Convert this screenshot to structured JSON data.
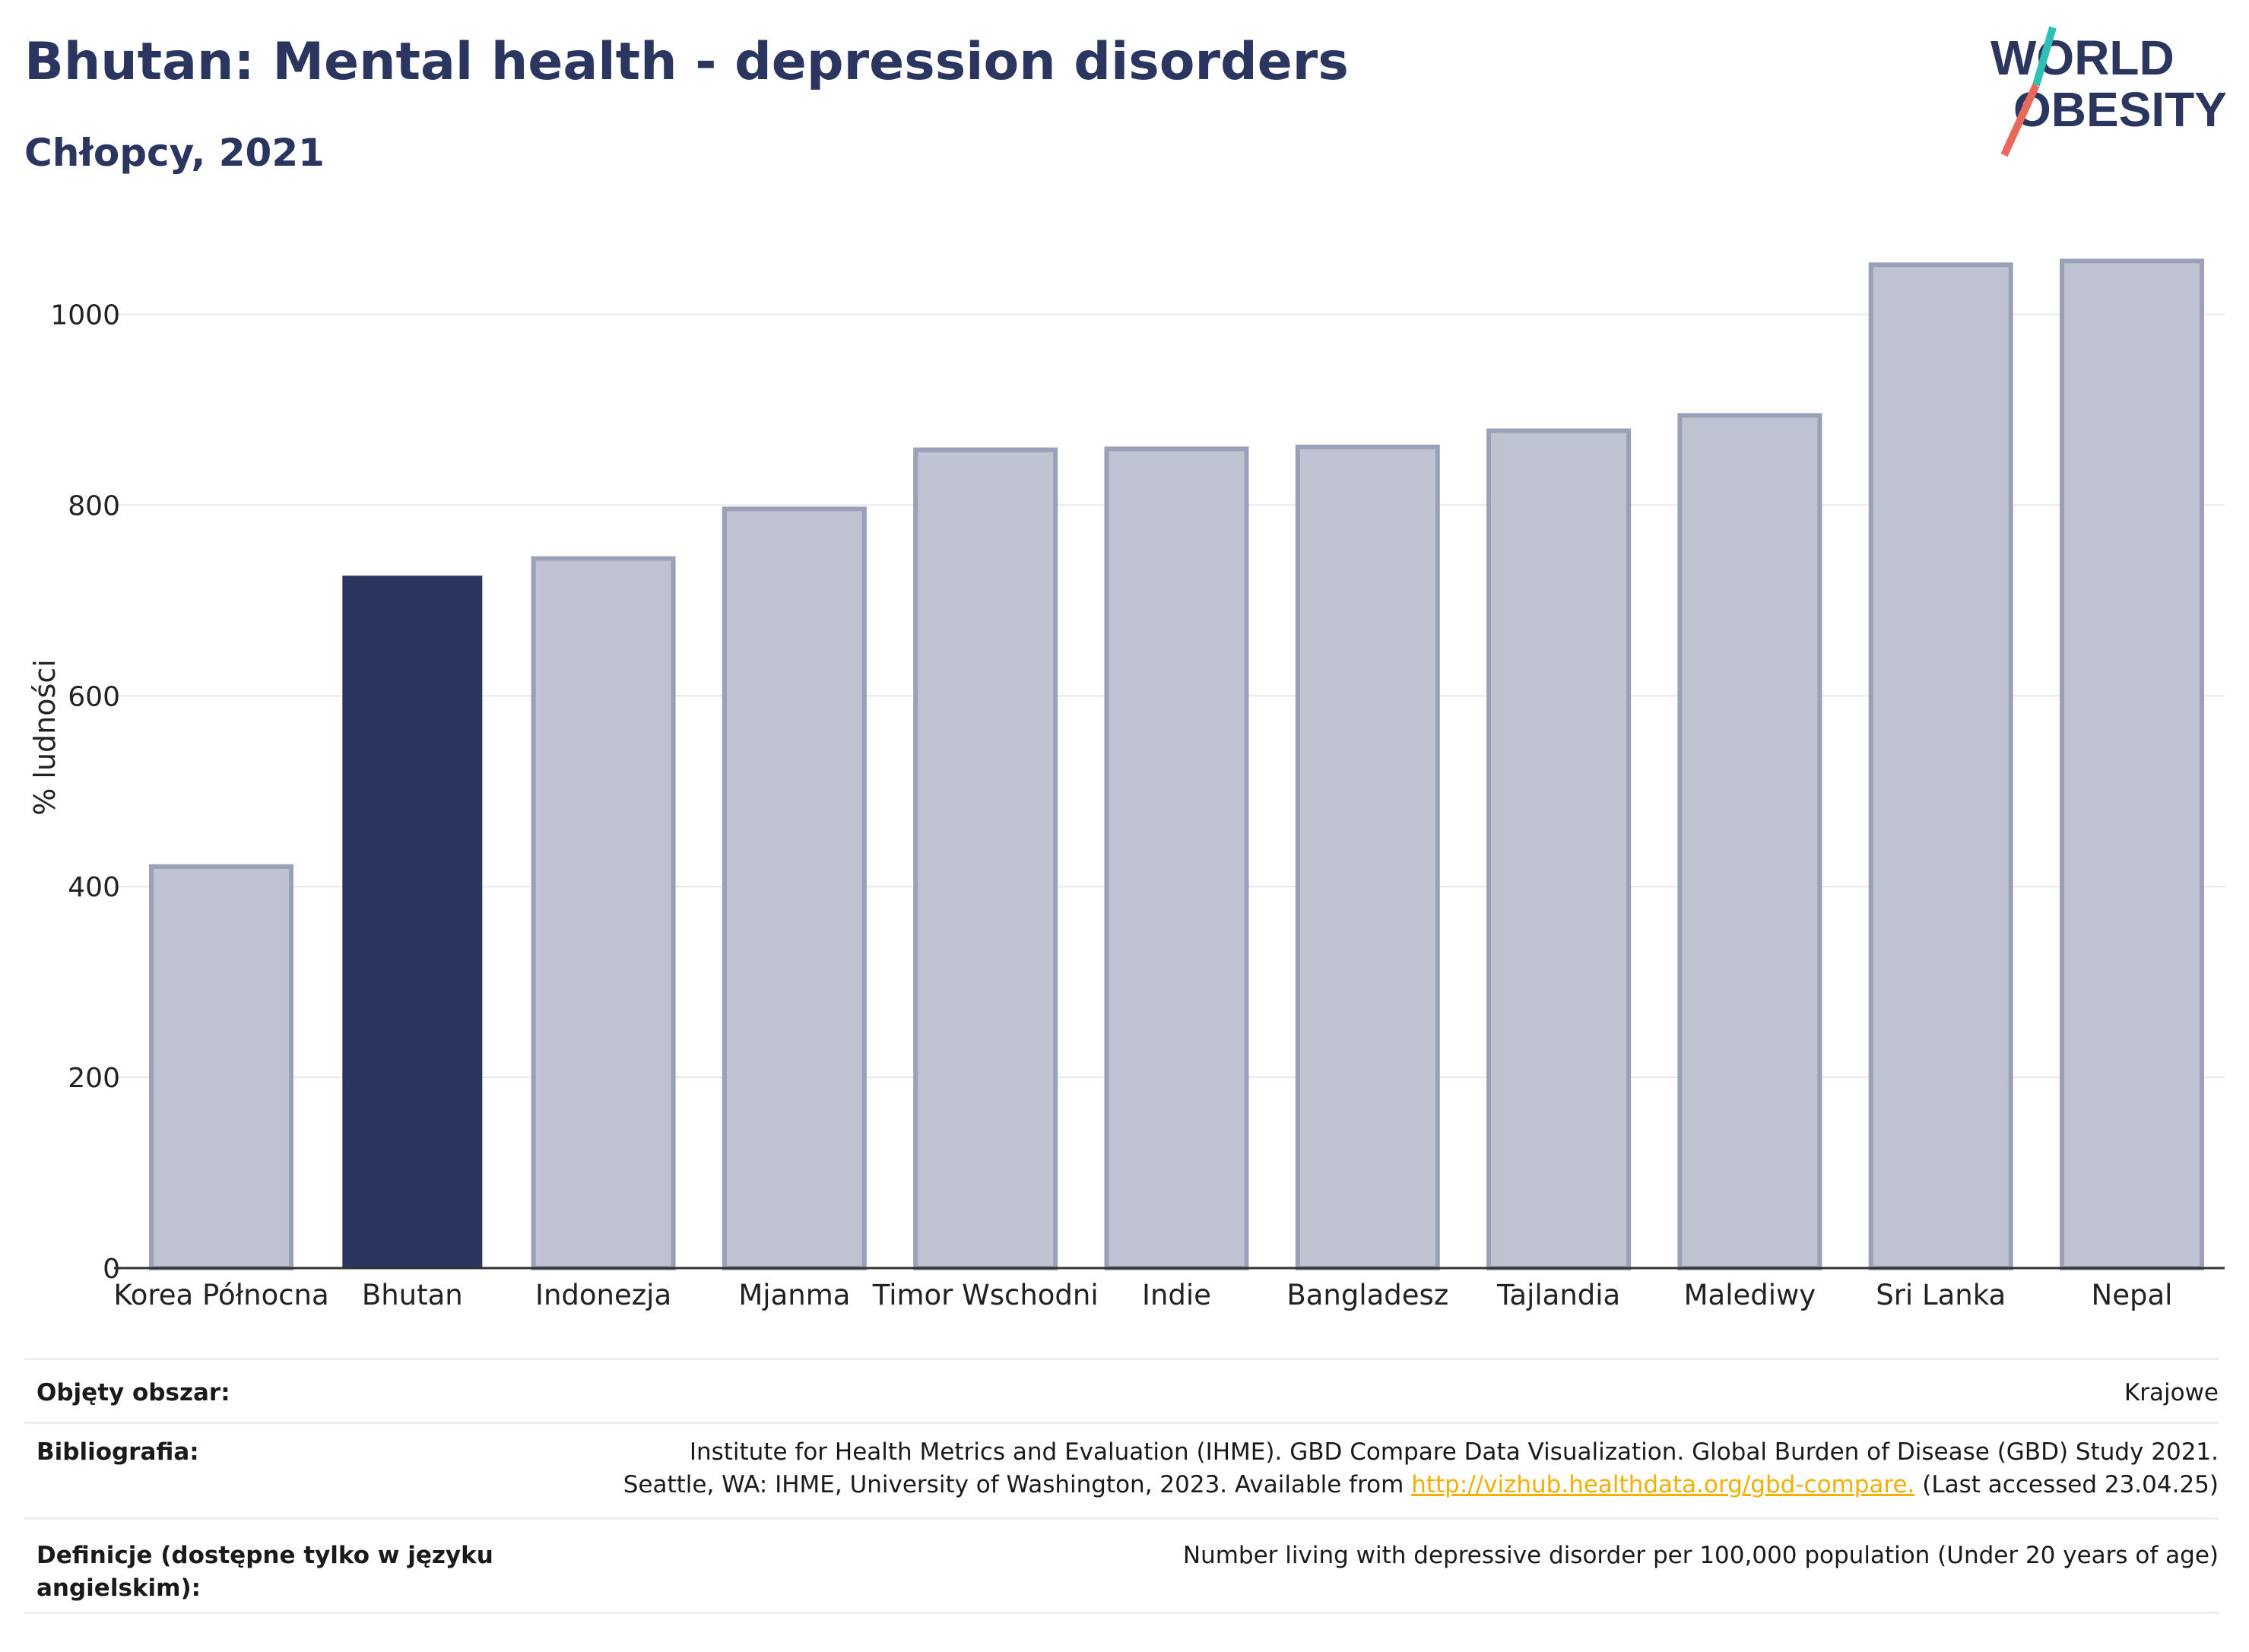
{
  "title": "Bhutan: Mental health - depression disorders",
  "subtitle": "Chłopcy, 2021",
  "logo": {
    "line1": "WORLD",
    "line2": "OBESITY"
  },
  "colors": {
    "highlight": "#2b365f",
    "other_fill": "#bfc3d1",
    "other_stroke": "#9aa0b8",
    "link": "#f3b000"
  },
  "chart_data": {
    "type": "bar",
    "categories": [
      "Korea Północna",
      "Bhutan",
      "Indonezja",
      "Mjanma",
      "Timor Wschodni",
      "Indie",
      "Bangladesz",
      "Tajlandia",
      "Malediwy",
      "Sri Lanka",
      "Nepal"
    ],
    "values": [
      421,
      726,
      744,
      796,
      858,
      859,
      861,
      878,
      894,
      1052,
      1056
    ],
    "highlight": "Bhutan",
    "ylabel": "% ludności",
    "xlabel": "",
    "ylim": [
      0,
      1080
    ],
    "yticks": [
      0,
      200,
      400,
      600,
      800,
      1000
    ],
    "grid": true
  },
  "meta": {
    "area_label": "Objęty obszar:",
    "area_value": "Krajowe",
    "biblio_label": "Bibliografia:",
    "biblio_line1": "Institute for Health Metrics and Evaluation (IHME). GBD Compare Data Visualization. Global Burden of Disease (GBD) Study 2021.",
    "biblio_line2_pre": "Seattle, WA: IHME, University of Washington, 2023. Available from ",
    "biblio_link": "http://vizhub.healthdata.org/gbd-compare.",
    "biblio_line2_post": " (Last accessed 23.04.25)",
    "def_label_line1": "Definicje (dostępne tylko w języku",
    "def_label_line2": "angielskim):",
    "def_value": "Number living with depressive disorder per 100,000 population (Under 20 years of age)"
  }
}
